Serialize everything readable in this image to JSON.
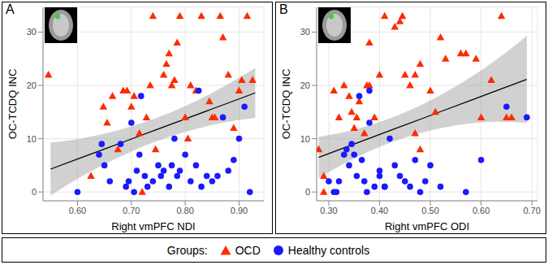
{
  "legend_title": "Groups:",
  "chart_data": [
    {
      "type": "scatter",
      "title": "A",
      "x_label": "Right vmPFC NDI",
      "y_label": "OC-TCDQ INC",
      "xlim": [
        0.536,
        0.946
      ],
      "xticks": [
        {
          "value": 0.6,
          "label": "0.60"
        },
        {
          "value": 0.7,
          "label": "0.70"
        },
        {
          "value": 0.8,
          "label": "0.80"
        },
        {
          "value": 0.9,
          "label": "0.90"
        }
      ],
      "ylim": [
        -1.65,
        34.65
      ],
      "yticks": [
        0,
        10,
        20,
        30
      ],
      "grid": true,
      "series": [
        {
          "name": "OCD",
          "color": "#ff2a00",
          "marker": "triangle",
          "x": [
            0.546,
            0.625,
            0.648,
            0.655,
            0.665,
            0.675,
            0.685,
            0.692,
            0.7,
            0.705,
            0.715,
            0.72,
            0.728,
            0.735,
            0.74,
            0.745,
            0.76,
            0.765,
            0.77,
            0.775,
            0.78,
            0.785,
            0.79,
            0.8,
            0.805,
            0.81,
            0.82,
            0.83,
            0.845,
            0.85,
            0.855,
            0.865,
            0.87,
            0.88,
            0.89,
            0.9,
            0.905,
            0.915,
            0.925
          ],
          "y": [
            22,
            3,
            16,
            13,
            18,
            8,
            19,
            19,
            16,
            18,
            11,
            0,
            14,
            20,
            33,
            8,
            22,
            24,
            26,
            20,
            21,
            28,
            33,
            14,
            10,
            20,
            19,
            33,
            17,
            14,
            14,
            33,
            29,
            22,
            12,
            19,
            21,
            33,
            21
          ]
        },
        {
          "name": "Healthy controls",
          "color": "#1a1aff",
          "marker": "circle",
          "x": [
            0.6,
            0.64,
            0.645,
            0.65,
            0.66,
            0.68,
            0.69,
            0.695,
            0.7,
            0.705,
            0.71,
            0.715,
            0.718,
            0.725,
            0.73,
            0.74,
            0.75,
            0.755,
            0.76,
            0.77,
            0.775,
            0.78,
            0.785,
            0.79,
            0.8,
            0.81,
            0.82,
            0.825,
            0.83,
            0.84,
            0.85,
            0.86,
            0.87,
            0.88,
            0.89,
            0.9,
            0.91,
            0.92
          ],
          "y": [
            0,
            7,
            9,
            5,
            2,
            9,
            1,
            2,
            13,
            0,
            4,
            7,
            18,
            3,
            1,
            2,
            5,
            3,
            4,
            1,
            5,
            10,
            3,
            4,
            7,
            2,
            5,
            19,
            1,
            3,
            2,
            3,
            14,
            4,
            6,
            10,
            16,
            0
          ]
        }
      ],
      "fit": {
        "color": "#000000",
        "x": [
          0.55,
          0.6,
          0.65,
          0.7,
          0.75,
          0.8,
          0.85,
          0.9,
          0.93
        ],
        "y": [
          4.3,
          6.18,
          8.06,
          9.94,
          11.82,
          13.7,
          15.58,
          17.46,
          18.59
        ],
        "lower": [
          -0.7,
          2.45,
          5.2,
          7.59,
          9.62,
          11.28,
          12.58,
          13.51,
          13.89
        ],
        "upper": [
          9.3,
          9.91,
          10.92,
          12.29,
          14.02,
          16.12,
          18.58,
          21.41,
          23.29
        ]
      }
    },
    {
      "type": "scatter",
      "title": "B",
      "x_label": "Right vmPFC ODI",
      "y_label": "OC-TCDQ INC",
      "xlim": [
        0.276,
        0.711
      ],
      "xticks": [
        {
          "value": 0.3,
          "label": "0.30"
        },
        {
          "value": 0.4,
          "label": "0.40"
        },
        {
          "value": 0.5,
          "label": "0.50"
        },
        {
          "value": 0.6,
          "label": "0.60"
        },
        {
          "value": 0.7,
          "label": "0.70"
        }
      ],
      "ylim": [
        -1.65,
        34.65
      ],
      "yticks": [
        0,
        10,
        20,
        30
      ],
      "grid": true,
      "series": [
        {
          "name": "OCD",
          "color": "#ff2a00",
          "marker": "triangle",
          "x": [
            0.28,
            0.29,
            0.29,
            0.31,
            0.32,
            0.33,
            0.34,
            0.345,
            0.35,
            0.355,
            0.36,
            0.37,
            0.375,
            0.38,
            0.38,
            0.39,
            0.4,
            0.41,
            0.43,
            0.44,
            0.445,
            0.45,
            0.46,
            0.47,
            0.47,
            0.48,
            0.48,
            0.5,
            0.51,
            0.52,
            0.53,
            0.56,
            0.57,
            0.59,
            0.6,
            0.62,
            0.64,
            0.65,
            0.66
          ],
          "y": [
            8,
            0,
            3,
            19,
            14,
            20,
            18,
            15,
            12,
            14,
            17,
            11,
            20,
            28,
            20,
            14,
            22,
            33,
            31,
            32,
            33,
            22,
            20,
            11,
            22,
            8,
            24,
            19,
            15,
            29,
            25,
            26,
            26,
            25,
            14,
            21,
            33,
            14,
            14
          ]
        },
        {
          "name": "Healthy controls",
          "color": "#1a1aff",
          "marker": "circle",
          "x": [
            0.3,
            0.31,
            0.315,
            0.32,
            0.33,
            0.335,
            0.34,
            0.345,
            0.35,
            0.355,
            0.36,
            0.365,
            0.37,
            0.375,
            0.38,
            0.38,
            0.39,
            0.4,
            0.4,
            0.41,
            0.41,
            0.42,
            0.43,
            0.44,
            0.45,
            0.46,
            0.47,
            0.48,
            0.49,
            0.5,
            0.52,
            0.57,
            0.6,
            0.65,
            0.69
          ],
          "y": [
            2,
            0,
            0,
            2,
            7,
            8,
            5,
            9,
            7,
            3,
            18,
            6,
            2,
            0,
            13,
            19,
            1,
            3,
            4,
            1,
            1,
            10,
            5,
            3,
            2,
            1,
            6,
            0,
            2,
            5,
            1,
            0,
            6,
            16,
            14
          ]
        }
      ],
      "fit": {
        "color": "#000000",
        "x": [
          0.28,
          0.33,
          0.38,
          0.43,
          0.48,
          0.53,
          0.58,
          0.63,
          0.69
        ],
        "y": [
          6.5,
          8.29,
          10.07,
          11.86,
          13.64,
          15.43,
          17.21,
          19.0,
          21.14
        ],
        "lower": [
          2.63,
          5.34,
          7.64,
          9.55,
          11.05,
          12.16,
          12.86,
          13.17,
          13.01
        ],
        "upper": [
          10.37,
          11.24,
          12.5,
          14.17,
          16.23,
          18.7,
          21.56,
          24.83,
          29.27
        ]
      }
    }
  ]
}
